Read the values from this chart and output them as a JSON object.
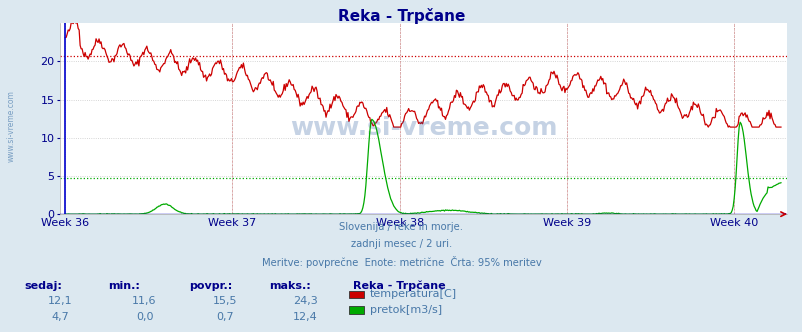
{
  "title": "Reka - Trpčane",
  "bg_color": "#dce8f0",
  "plot_bg_color": "#ffffff",
  "grid_color": "#c8c8c8",
  "title_color": "#00008b",
  "axis_label_color": "#00008b",
  "text_color": "#4878a8",
  "xlabel_weeks": [
    "Week 36",
    "Week 37",
    "Week 38",
    "Week 39",
    "Week 40"
  ],
  "ylim": [
    0,
    25
  ],
  "yticks": [
    0,
    5,
    10,
    15,
    20
  ],
  "n_points": 720,
  "temp_avg_line": 20.75,
  "flow_avg_line": 4.7,
  "temp_color": "#cc0000",
  "flow_color": "#00aa00",
  "blue_color": "#0000cc",
  "subtitle_lines": [
    "Slovenija / reke in morje.",
    "zadnji mesec / 2 uri.",
    "Meritve: povprečne  Enote: metrične  Črta: 95% meritev"
  ],
  "legend_title": "Reka - Trpčane",
  "legend_items": [
    {
      "label": "temperatura[C]",
      "color": "#cc0000"
    },
    {
      "label": "pretok[m3/s]",
      "color": "#00aa00"
    }
  ],
  "stats_headers": [
    "sedaj:",
    "min.:",
    "povpr.:",
    "maks.:"
  ],
  "stats_temp": [
    "12,1",
    "11,6",
    "15,5",
    "24,3"
  ],
  "stats_flow": [
    "4,7",
    "0,0",
    "0,7",
    "12,4"
  ],
  "watermark": "www.si-vreme.com",
  "left_watermark": "www.si-vreme.com"
}
